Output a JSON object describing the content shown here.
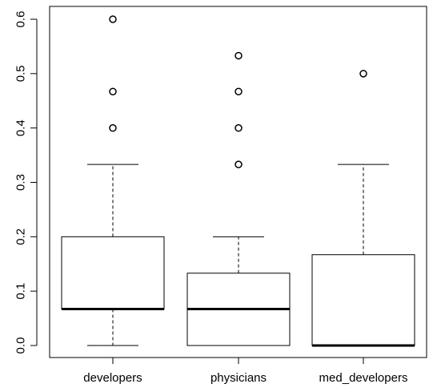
{
  "chart_data": {
    "type": "boxplot",
    "title": "",
    "xlabel": "",
    "ylabel": "",
    "ylim": [
      -0.02,
      0.62
    ],
    "yticks": [
      0.0,
      0.1,
      0.2,
      0.3,
      0.4,
      0.5,
      0.6
    ],
    "ytick_labels": [
      "0.0",
      "0.1",
      "0.2",
      "0.3",
      "0.4",
      "0.5",
      "0.6"
    ],
    "categories": [
      "developers",
      "physicians",
      "med_developers"
    ],
    "boxes": [
      {
        "category": "developers",
        "whisker_low": 0.0,
        "q1": 0.067,
        "median": 0.067,
        "q3": 0.2,
        "whisker_high": 0.333,
        "outliers": [
          0.4,
          0.467,
          0.6
        ]
      },
      {
        "category": "physicians",
        "whisker_low": 0.0,
        "q1": 0.0,
        "median": 0.067,
        "q3": 0.133,
        "whisker_high": 0.2,
        "outliers": [
          0.333,
          0.4,
          0.467,
          0.533
        ]
      },
      {
        "category": "med_developers",
        "whisker_low": 0.0,
        "q1": 0.0,
        "median": 0.0,
        "q3": 0.167,
        "whisker_high": 0.333,
        "outliers": [
          0.5
        ]
      }
    ],
    "grid": false,
    "legend": "none",
    "colors": {
      "stroke": "#000000",
      "background": "#ffffff"
    }
  }
}
